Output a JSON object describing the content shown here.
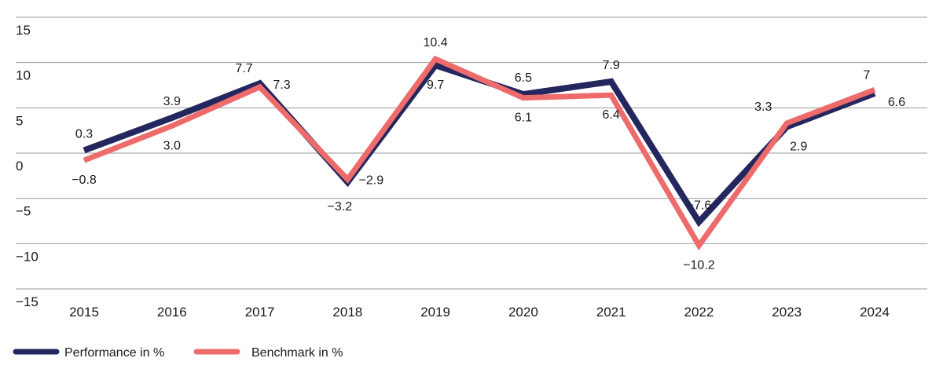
{
  "chart_data": {
    "type": "line",
    "x": [
      "2015",
      "2016",
      "2017",
      "2018",
      "2019",
      "2020",
      "2021",
      "2022",
      "2023",
      "2024"
    ],
    "series": [
      {
        "name": "Performance in %",
        "color": "#23275e",
        "values": [
          0.3,
          3.9,
          7.7,
          -3.2,
          9.7,
          6.5,
          7.9,
          -7.6,
          2.9,
          6.6
        ],
        "labels": [
          "0.3",
          "3.9",
          "7.7",
          "−3.2",
          "9.7",
          "6.5",
          "7.9",
          "−7.6",
          "2.9",
          "6.6"
        ]
      },
      {
        "name": "Benchmark in %",
        "color": "#ee6b6b",
        "values": [
          -0.8,
          3.0,
          7.3,
          -2.9,
          10.4,
          6.1,
          6.4,
          -10.2,
          3.3,
          7
        ],
        "labels": [
          "−0.8",
          "3.0",
          "7.3",
          "−2.9",
          "10.4",
          "6.1",
          "6.4",
          "−10.2",
          "3.3",
          "7"
        ]
      }
    ],
    "yticks": [
      "15",
      "10",
      "5",
      "0",
      "−5",
      "−10",
      "−15"
    ],
    "ylim": [
      -15,
      15
    ],
    "grid": true,
    "legend_position": "bottom-left"
  }
}
